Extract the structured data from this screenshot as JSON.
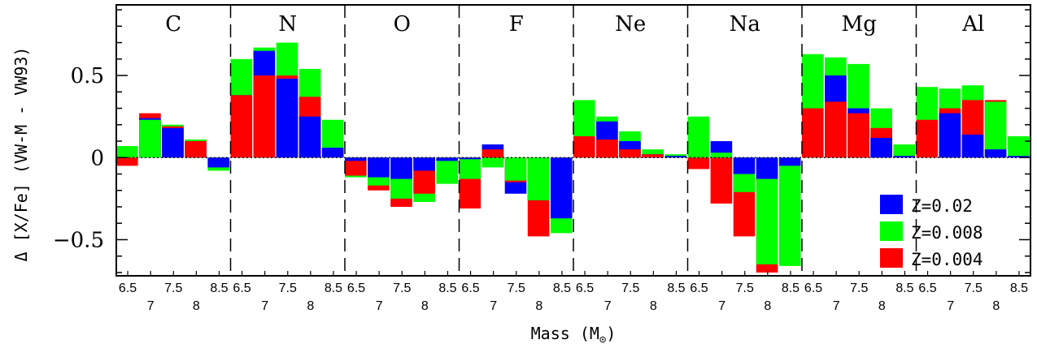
{
  "chart_data": {
    "type": "bar",
    "xlabel": "Mass (M",
    "xlabel_subscript": "⊙",
    "xlabel_suffix": ")",
    "ylabel": "Δ [X/Fe] (VW-M - VW93)",
    "ylim": [
      -0.72,
      0.93
    ],
    "yticks": [
      {
        "value": 0.5,
        "label": "0.5"
      },
      {
        "value": 0,
        "label": "0"
      },
      {
        "value": -0.5,
        "label": "−0.5"
      }
    ],
    "masses": [
      "6.5",
      "7",
      "7.5",
      "8",
      "8.5"
    ],
    "legend_position": "bottom-right",
    "series": [
      {
        "name": "Z=0.02",
        "color": "#0000ff"
      },
      {
        "name": "Z=0.008",
        "color": "#00ff00"
      },
      {
        "name": "Z=0.004",
        "color": "#ff0000"
      }
    ],
    "groups": [
      {
        "element": "C",
        "values": {
          "Z=0.02": [
            0.0,
            0.24,
            0.18,
            0.1,
            -0.06
          ],
          "Z=0.008": [
            0.07,
            0.23,
            0.2,
            0.11,
            -0.08
          ],
          "Z=0.004": [
            -0.05,
            0.27,
            0.19,
            0.1,
            0.0
          ]
        }
      },
      {
        "element": "N",
        "values": {
          "Z=0.02": [
            0.38,
            0.65,
            0.48,
            0.25,
            0.06
          ],
          "Z=0.008": [
            0.6,
            0.67,
            0.7,
            0.54,
            0.23
          ],
          "Z=0.004": [
            0.38,
            0.5,
            0.5,
            0.37,
            0.0
          ]
        }
      },
      {
        "element": "O",
        "values": {
          "Z=0.02": [
            -0.02,
            -0.12,
            -0.13,
            -0.08,
            -0.02
          ],
          "Z=0.008": [
            -0.12,
            -0.17,
            -0.25,
            -0.27,
            -0.16
          ],
          "Z=0.004": [
            -0.11,
            -0.2,
            -0.3,
            -0.22,
            0.0
          ]
        }
      },
      {
        "element": "F",
        "values": {
          "Z=0.02": [
            -0.01,
            0.08,
            -0.22,
            -0.26,
            -0.37
          ],
          "Z=0.008": [
            -0.13,
            -0.06,
            -0.14,
            -0.26,
            -0.46
          ],
          "Z=0.004": [
            -0.31,
            0.05,
            -0.15,
            -0.48,
            0.0
          ]
        }
      },
      {
        "element": "Ne",
        "values": {
          "Z=0.02": [
            0.0,
            0.22,
            0.1,
            0.02,
            0.01
          ],
          "Z=0.008": [
            0.35,
            0.25,
            0.16,
            0.05,
            0.02
          ],
          "Z=0.004": [
            0.13,
            0.11,
            0.05,
            0.02,
            0.0
          ]
        }
      },
      {
        "element": "Na",
        "values": {
          "Z=0.02": [
            0.0,
            0.1,
            -0.1,
            -0.13,
            -0.05
          ],
          "Z=0.008": [
            0.25,
            0.03,
            -0.21,
            -0.65,
            -0.66
          ],
          "Z=0.004": [
            -0.07,
            -0.28,
            -0.48,
            -0.7,
            0.0
          ]
        }
      },
      {
        "element": "Mg",
        "values": {
          "Z=0.02": [
            0.0,
            0.5,
            0.3,
            0.12,
            0.01
          ],
          "Z=0.008": [
            0.63,
            0.61,
            0.57,
            0.3,
            0.08
          ],
          "Z=0.004": [
            0.3,
            0.34,
            0.27,
            0.18,
            0.0
          ]
        }
      },
      {
        "element": "Al",
        "values": {
          "Z=0.02": [
            0.0,
            0.27,
            0.14,
            0.05,
            0.01
          ],
          "Z=0.008": [
            0.43,
            0.42,
            0.44,
            0.34,
            0.13
          ],
          "Z=0.004": [
            0.23,
            0.3,
            0.35,
            0.35,
            0.0
          ]
        }
      }
    ]
  }
}
